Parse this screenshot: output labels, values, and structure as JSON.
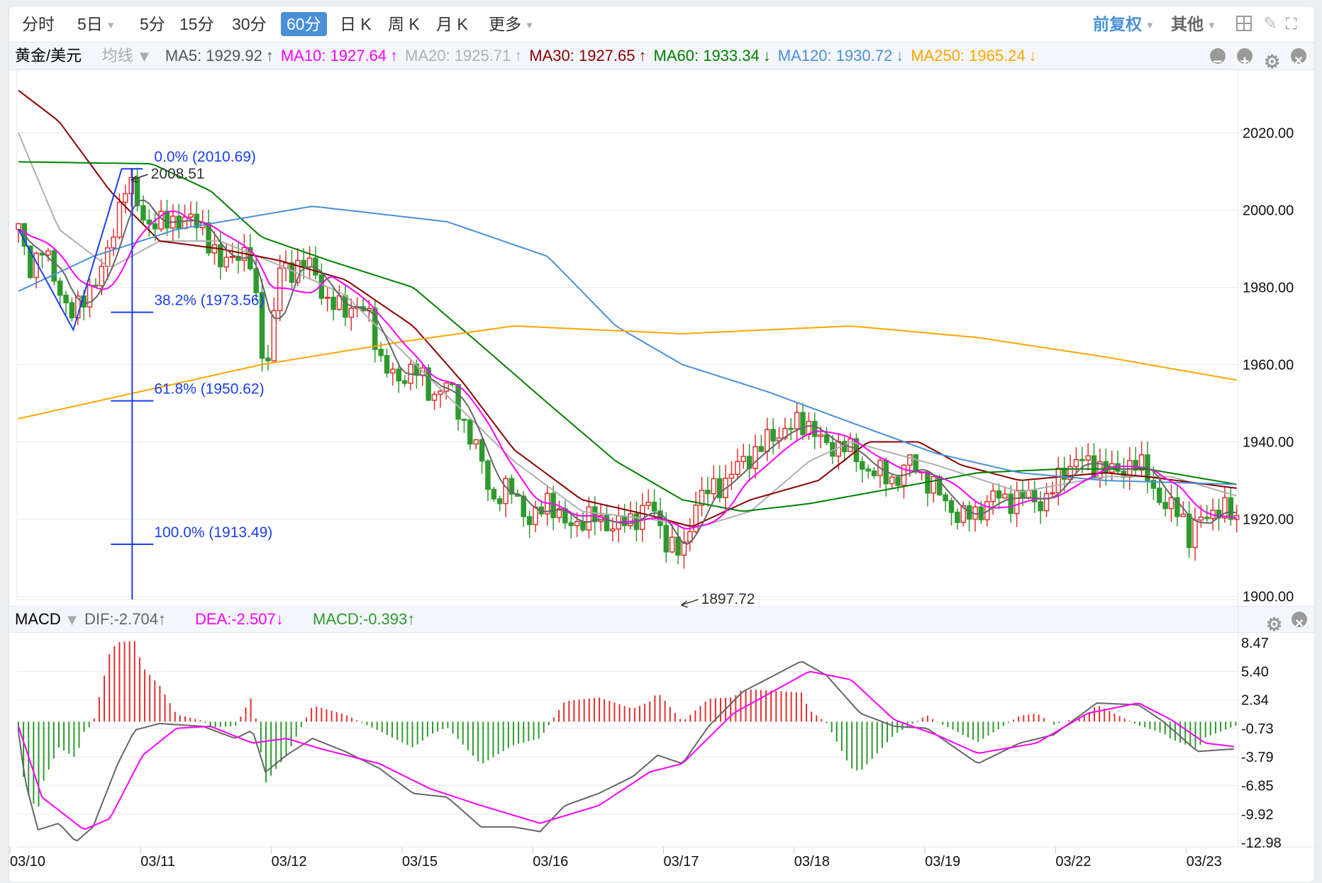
{
  "toolbar": {
    "periods": [
      {
        "label": "分时",
        "dropdown": false
      },
      {
        "label": "5日",
        "dropdown": true
      },
      {
        "label": "5分",
        "dropdown": false
      },
      {
        "label": "15分",
        "dropdown": false
      },
      {
        "label": "30分",
        "dropdown": false
      },
      {
        "label": "60分",
        "dropdown": false,
        "active": true
      },
      {
        "label": "日 K",
        "dropdown": false
      },
      {
        "label": "周 K",
        "dropdown": false
      },
      {
        "label": "月 K",
        "dropdown": false
      },
      {
        "label": "更多",
        "dropdown": true
      }
    ],
    "adjust": "前复权",
    "other": "其他",
    "icons": [
      "grid-icon",
      "brush-icon",
      "fullscreen-icon"
    ]
  },
  "ma_bar": {
    "symbol": "黄金/美元",
    "indicator": "均线",
    "items": [
      {
        "label": "MA5: 1929.92",
        "arrow": "↑",
        "color": "#555555"
      },
      {
        "label": "MA10: 1927.64",
        "arrow": "↑",
        "color": "#ff00ff"
      },
      {
        "label": "MA20: 1925.71",
        "arrow": "↑",
        "color": "#b0b0b0"
      },
      {
        "label": "MA30: 1927.65",
        "arrow": "↑",
        "color": "#8b0000"
      },
      {
        "label": "MA60: 1933.34",
        "arrow": "↓",
        "color": "#008000"
      },
      {
        "label": "MA120: 1930.72",
        "arrow": "↓",
        "color": "#4a90d9"
      },
      {
        "label": "MA250: 1965.24",
        "arrow": "↓",
        "color": "#ffa500"
      }
    ]
  },
  "macd_bar": {
    "name": "MACD",
    "dif": "DIF:-2.704↑",
    "dea": "DEA:-2.507↓",
    "macd": "MACD:-0.393↑",
    "colors": {
      "dif": "#666666",
      "dea": "#ff00ff",
      "macd": "#2e9a2e"
    }
  },
  "chart_data": {
    "type": "candlestick",
    "x_unit": "trading days from 03/10",
    "dates": [
      "03/10",
      "03/11",
      "03/12",
      "03/15",
      "03/16",
      "03/17",
      "03/18",
      "03/19",
      "03/22",
      "03/23"
    ],
    "price_axis": {
      "ticks": [
        "2020.00",
        "2000.00",
        "1980.00",
        "1960.00",
        "1940.00",
        "1920.00",
        "1900.00"
      ],
      "range": [
        1895,
        2033
      ]
    },
    "up_color": "#e03030",
    "down_color": "#2e9a2e",
    "close_path": [
      [
        0,
        1995
      ],
      [
        0.08,
        1985
      ],
      [
        0.18,
        1990
      ],
      [
        0.28,
        1982
      ],
      [
        0.42,
        1972
      ],
      [
        0.54,
        1980
      ],
      [
        0.66,
        1985
      ],
      [
        0.76,
        2000
      ],
      [
        0.83,
        2008
      ],
      [
        0.95,
        1998
      ],
      [
        1.08,
        1996
      ],
      [
        1.21,
        1998
      ],
      [
        1.41,
        1996
      ],
      [
        1.54,
        1985
      ],
      [
        1.66,
        1990
      ],
      [
        1.79,
        1985
      ],
      [
        1.86,
        1965
      ],
      [
        1.92,
        1960
      ],
      [
        1.99,
        1985
      ],
      [
        2.12,
        1985
      ],
      [
        2.25,
        1986
      ],
      [
        2.37,
        1975
      ],
      [
        2.57,
        1975
      ],
      [
        2.7,
        1972
      ],
      [
        2.76,
        1962
      ],
      [
        2.89,
        1955
      ],
      [
        3.02,
        1960
      ],
      [
        3.15,
        1952
      ],
      [
        3.28,
        1955
      ],
      [
        3.41,
        1945
      ],
      [
        3.54,
        1935
      ],
      [
        3.63,
        1925
      ],
      [
        3.79,
        1928
      ],
      [
        3.92,
        1918
      ],
      [
        4.05,
        1926
      ],
      [
        4.18,
        1918
      ],
      [
        4.31,
        1920
      ],
      [
        4.44,
        1920
      ],
      [
        4.57,
        1918
      ],
      [
        4.7,
        1920
      ],
      [
        4.83,
        1924
      ],
      [
        4.95,
        1915
      ],
      [
        5.08,
        1910
      ],
      [
        5.18,
        1925
      ],
      [
        5.28,
        1927
      ],
      [
        5.41,
        1930
      ],
      [
        5.54,
        1935
      ],
      [
        5.66,
        1938
      ],
      [
        5.79,
        1942
      ],
      [
        5.92,
        1944
      ],
      [
        6.05,
        1945
      ],
      [
        6.18,
        1938
      ],
      [
        6.31,
        1940
      ],
      [
        6.44,
        1934
      ],
      [
        6.57,
        1932
      ],
      [
        6.7,
        1930
      ],
      [
        6.83,
        1935
      ],
      [
        6.95,
        1930
      ],
      [
        7.08,
        1925
      ],
      [
        7.21,
        1920
      ],
      [
        7.34,
        1922
      ],
      [
        7.47,
        1926
      ],
      [
        7.6,
        1925
      ],
      [
        7.73,
        1926
      ],
      [
        7.86,
        1924
      ],
      [
        7.99,
        1933
      ],
      [
        8.12,
        1935
      ],
      [
        8.25,
        1934
      ],
      [
        8.37,
        1932
      ],
      [
        8.5,
        1934
      ],
      [
        8.63,
        1933
      ],
      [
        8.76,
        1922
      ],
      [
        8.89,
        1924
      ],
      [
        8.95,
        1914
      ],
      [
        9.08,
        1922
      ],
      [
        9.21,
        1922
      ],
      [
        9.32,
        1921
      ]
    ],
    "moving_averages": [
      {
        "name": "MA20",
        "color": "#b0b0b0",
        "points": [
          [
            0,
            2020
          ],
          [
            0.31,
            1995
          ],
          [
            0.7,
            1985
          ],
          [
            1.08,
            1992
          ],
          [
            1.54,
            1992
          ],
          [
            2.05,
            1985
          ],
          [
            2.5,
            1978
          ],
          [
            2.89,
            1965
          ],
          [
            3.28,
            1952
          ],
          [
            3.79,
            1935
          ],
          [
            4.31,
            1922
          ],
          [
            4.83,
            1920
          ],
          [
            5.21,
            1918
          ],
          [
            5.6,
            1922
          ],
          [
            6.05,
            1935
          ],
          [
            6.37,
            1940
          ],
          [
            7.02,
            1934
          ],
          [
            7.66,
            1927
          ],
          [
            8.31,
            1931
          ],
          [
            8.82,
            1931
          ],
          [
            9.32,
            1926
          ]
        ]
      },
      {
        "name": "MA30",
        "color": "#8b0000",
        "points": [
          [
            0,
            2031
          ],
          [
            0.31,
            2023
          ],
          [
            0.7,
            2005
          ],
          [
            1.08,
            1992
          ],
          [
            1.54,
            1990
          ],
          [
            1.99,
            1987
          ],
          [
            2.5,
            1982
          ],
          [
            3.02,
            1970
          ],
          [
            3.41,
            1955
          ],
          [
            3.79,
            1938
          ],
          [
            4.31,
            1925
          ],
          [
            4.83,
            1921
          ],
          [
            5.15,
            1918
          ],
          [
            5.6,
            1925
          ],
          [
            6.12,
            1930
          ],
          [
            6.5,
            1940
          ],
          [
            6.89,
            1940
          ],
          [
            7.21,
            1934
          ],
          [
            7.66,
            1930
          ],
          [
            8.31,
            1932
          ],
          [
            8.63,
            1931
          ],
          [
            9.32,
            1928
          ]
        ]
      },
      {
        "name": "MA60",
        "color": "#008000",
        "points": [
          [
            0,
            2012.5
          ],
          [
            1.02,
            2012
          ],
          [
            1.47,
            2005
          ],
          [
            1.86,
            1993
          ],
          [
            2.37,
            1987
          ],
          [
            3.02,
            1980
          ],
          [
            3.54,
            1965
          ],
          [
            4.05,
            1950
          ],
          [
            4.57,
            1935
          ],
          [
            5.08,
            1925
          ],
          [
            5.54,
            1922
          ],
          [
            6.05,
            1924
          ],
          [
            6.7,
            1928
          ],
          [
            7.34,
            1932
          ],
          [
            7.99,
            1933
          ],
          [
            8.63,
            1933
          ],
          [
            9.32,
            1929
          ]
        ]
      },
      {
        "name": "MA120",
        "color": "#4a90d9",
        "points": [
          [
            0,
            1979
          ],
          [
            0.57,
            1988
          ],
          [
            1.21,
            1995
          ],
          [
            2.25,
            2001
          ],
          [
            3.28,
            1997
          ],
          [
            4.05,
            1988
          ],
          [
            4.57,
            1970
          ],
          [
            5.08,
            1960
          ],
          [
            5.73,
            1953
          ],
          [
            6.37,
            1945
          ],
          [
            7.02,
            1937
          ],
          [
            7.66,
            1932
          ],
          [
            8.31,
            1930
          ],
          [
            9.32,
            1929
          ]
        ]
      },
      {
        "name": "MA250",
        "color": "#ffa500",
        "points": [
          [
            0,
            1946
          ],
          [
            1.86,
            1960
          ],
          [
            2.95,
            1966
          ],
          [
            3.79,
            1970
          ],
          [
            5.08,
            1968
          ],
          [
            6.37,
            1970
          ],
          [
            7.34,
            1967
          ],
          [
            8.31,
            1962
          ],
          [
            9.32,
            1956
          ]
        ]
      }
    ],
    "fibonacci": {
      "color": "#1a3ff0",
      "levels": [
        {
          "label": "0.0% (2010.69)",
          "value": 2010.69
        },
        {
          "label": "38.2% (1973.56)",
          "value": 1973.56
        },
        {
          "label": "61.8% (1950.62)",
          "value": 1950.62
        },
        {
          "label": "100.0% (1913.49)",
          "value": 1913.49
        }
      ],
      "zigzag": [
        [
          0,
          1995
        ],
        [
          0.42,
          1969
        ],
        [
          0.79,
          2010.69
        ],
        [
          0.95,
          2010.69
        ]
      ]
    },
    "annotations": [
      {
        "label": "2008.51",
        "t": 0.85,
        "value": 2008.51,
        "side": "high"
      },
      {
        "label": "1897.72",
        "t": 5.06,
        "value": 1897.72,
        "side": "low"
      }
    ],
    "macd": {
      "axis_ticks": [
        "8.47",
        "5.40",
        "2.34",
        "-0.73",
        "-3.79",
        "-6.85",
        "-9.92",
        "-12.98"
      ],
      "range": [
        -12.98,
        8.47
      ],
      "dif": [
        [
          0,
          -1
        ],
        [
          0.05,
          -6.3
        ],
        [
          0.15,
          -11.6
        ],
        [
          0.31,
          -10.9
        ],
        [
          0.44,
          -12.9
        ],
        [
          0.57,
          -11.3
        ],
        [
          0.76,
          -4.5
        ],
        [
          0.89,
          -0.9
        ],
        [
          1.08,
          -0.2
        ],
        [
          1.41,
          -0.5
        ],
        [
          1.66,
          -1.8
        ],
        [
          1.79,
          -0.9
        ],
        [
          1.89,
          -5.4
        ],
        [
          2.05,
          -3.6
        ],
        [
          2.25,
          -1.8
        ],
        [
          2.5,
          -3.2
        ],
        [
          2.76,
          -5
        ],
        [
          3.02,
          -7.7
        ],
        [
          3.28,
          -8.1
        ],
        [
          3.54,
          -11.3
        ],
        [
          3.79,
          -11.3
        ],
        [
          3.99,
          -11.8
        ],
        [
          4.18,
          -9
        ],
        [
          4.44,
          -7.7
        ],
        [
          4.7,
          -5.9
        ],
        [
          4.89,
          -3.6
        ],
        [
          5.08,
          -4.5
        ],
        [
          5.28,
          -0.5
        ],
        [
          5.54,
          3.2
        ],
        [
          5.99,
          6.5
        ],
        [
          6.18,
          5
        ],
        [
          6.44,
          0.9
        ],
        [
          6.7,
          -0.5
        ],
        [
          6.95,
          -0.7
        ],
        [
          7.34,
          -4.5
        ],
        [
          7.66,
          -2.3
        ],
        [
          7.92,
          -1.4
        ],
        [
          8.25,
          2
        ],
        [
          8.57,
          1.8
        ],
        [
          8.76,
          0
        ],
        [
          9.02,
          -3.2
        ],
        [
          9.32,
          -2.9
        ]
      ],
      "dea": [
        [
          0,
          -0.5
        ],
        [
          0.18,
          -8.1
        ],
        [
          0.5,
          -11.6
        ],
        [
          0.7,
          -10.4
        ],
        [
          0.95,
          -3.6
        ],
        [
          1.21,
          -0.7
        ],
        [
          1.47,
          -0.5
        ],
        [
          1.79,
          -2.3
        ],
        [
          2.05,
          -1.8
        ],
        [
          2.31,
          -2.9
        ],
        [
          2.76,
          -4.5
        ],
        [
          3.15,
          -7.2
        ],
        [
          3.54,
          -9
        ],
        [
          3.99,
          -10.9
        ],
        [
          4.44,
          -9
        ],
        [
          4.83,
          -5.4
        ],
        [
          5.08,
          -4.5
        ],
        [
          5.47,
          0.9
        ],
        [
          6.05,
          5.4
        ],
        [
          6.37,
          4.5
        ],
        [
          6.7,
          0.2
        ],
        [
          7.02,
          -1.4
        ],
        [
          7.34,
          -3.4
        ],
        [
          7.79,
          -2.3
        ],
        [
          8.18,
          0.9
        ],
        [
          8.57,
          2
        ],
        [
          8.82,
          0.2
        ],
        [
          9.08,
          -2.3
        ],
        [
          9.32,
          -2.7
        ]
      ]
    }
  }
}
